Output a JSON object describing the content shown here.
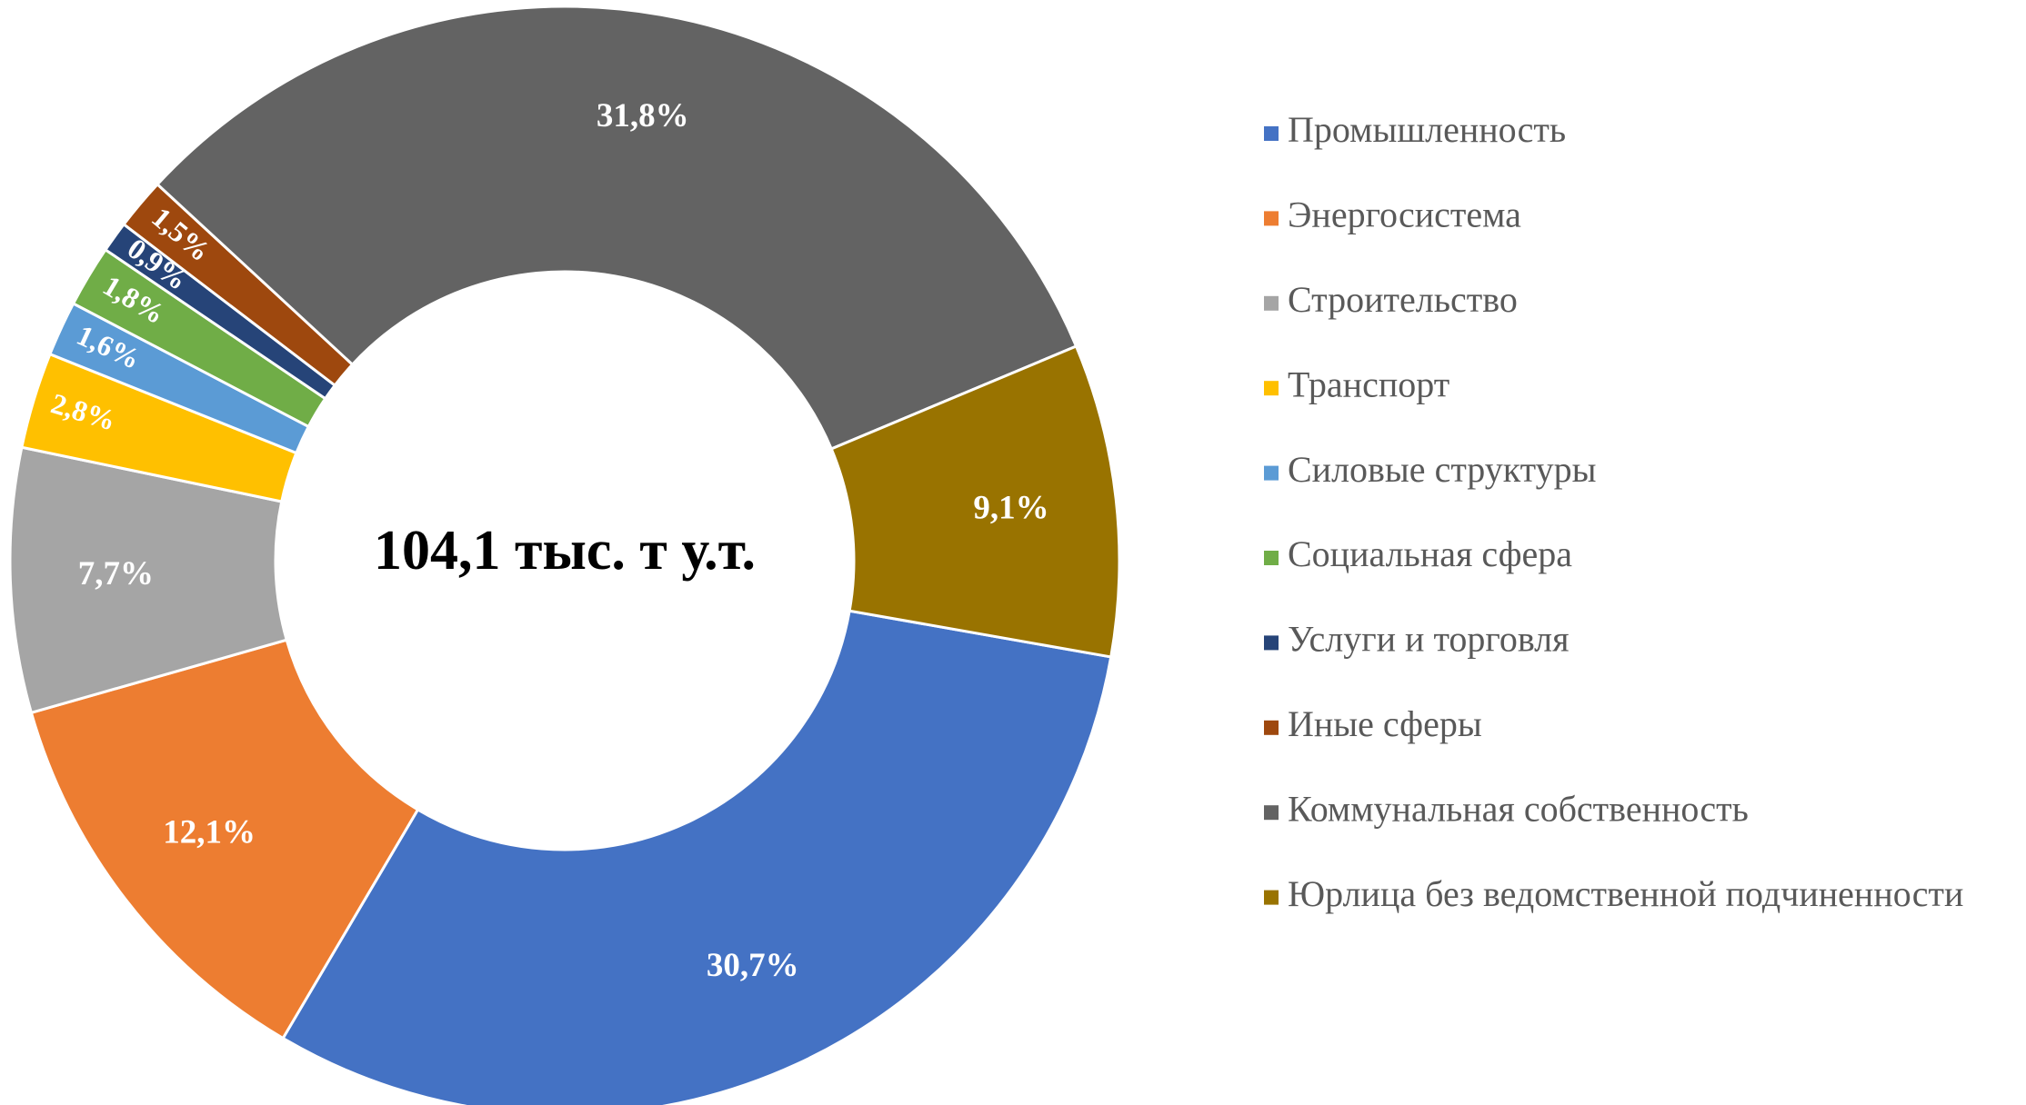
{
  "chart_data": {
    "type": "donut",
    "annotation": "104,1 тыс. т у.т.",
    "categories": [
      "Промышленность",
      "Энергосистема",
      "Строительство",
      "Транспорт",
      "Силовые структуры",
      "Социальная сфера",
      "Услуги и торговля",
      "Иные сферы",
      "Коммунальная собственность",
      "Юрлица без ведомственной подчиненности"
    ],
    "values": [
      30.7,
      12.1,
      7.7,
      2.8,
      1.6,
      1.8,
      0.9,
      1.5,
      31.8,
      9.1
    ],
    "value_labels": [
      "30,7%",
      "12,1%",
      "7,7%",
      "2,8%",
      "1,6%",
      "1,8%",
      "0,9%",
      "1,5%",
      "31,8%",
      "9,1%"
    ],
    "colors": [
      "#4472c4",
      "#ed7d31",
      "#a5a5a5",
      "#ffc000",
      "#5b9bd5",
      "#70ad47",
      "#264478",
      "#9e480e",
      "#636363",
      "#997300"
    ],
    "legend": "right"
  }
}
